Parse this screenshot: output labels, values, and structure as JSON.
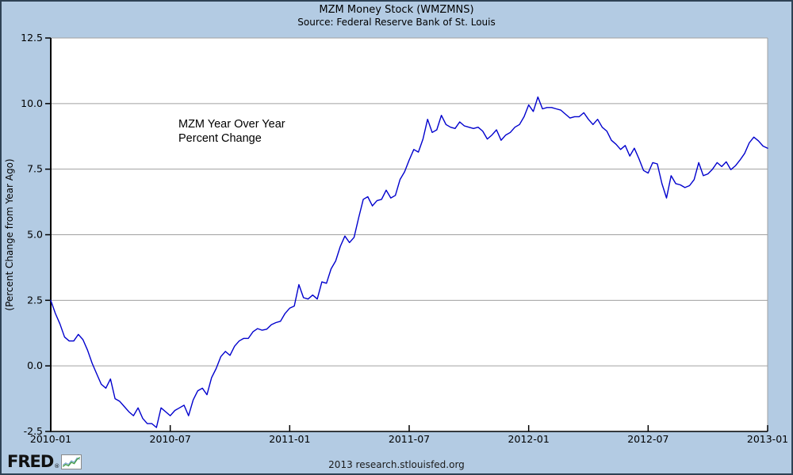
{
  "header": {
    "title": "MZM Money Stock (WMZMNS)",
    "source": "Source: Federal Reserve Bank of St. Louis"
  },
  "annotation": {
    "line1": "MZM Year Over Year",
    "line2": "Percent Change"
  },
  "footer": {
    "logo_text": "FRED",
    "registered_mark": "®",
    "logo_chart_icon": "mini-line-chart-icon",
    "credit": "2013 research.stlouisfed.org"
  },
  "colors": {
    "background": "#b3cbe3",
    "plot_background": "#ffffff",
    "gridline": "#a0a0a0",
    "axis": "#000000",
    "line": "#0000cd",
    "frame_border": "#2e4154",
    "logo_icon_green": "#3f9b3f",
    "logo_icon_blue": "#7aa4cc"
  },
  "chart_data": {
    "type": "line",
    "title": "MZM Money Stock (WMZMNS)",
    "subtitle": "Source: Federal Reserve Bank of St. Louis",
    "xlabel": "",
    "ylabel": "(Percent Change from Year Ago)",
    "ylim": [
      -2.5,
      12.5
    ],
    "y_ticks": [
      "12.5",
      "10.0",
      "7.5",
      "5.0",
      "2.5",
      "0.0",
      "-2.5"
    ],
    "x_tick_labels": [
      "2010-01",
      "2010-07",
      "2011-01",
      "2011-07",
      "2012-01",
      "2012-07",
      "2013-01"
    ],
    "grid": "horizontal",
    "legend_position": "none",
    "annotation_text": "MZM Year Over Year Percent Change",
    "series": [
      {
        "name": "MZM Money Stock, Percent Change from Year Ago",
        "color": "#0000cd",
        "values": [
          2.5,
          2.0,
          1.6,
          1.1,
          0.95,
          0.95,
          1.2,
          1.0,
          0.6,
          0.1,
          -0.3,
          -0.7,
          -0.85,
          -0.5,
          -1.25,
          -1.35,
          -1.55,
          -1.75,
          -1.9,
          -1.6,
          -2.0,
          -2.2,
          -2.2,
          -2.35,
          -1.6,
          -1.75,
          -1.9,
          -1.7,
          -1.6,
          -1.5,
          -1.9,
          -1.3,
          -0.95,
          -0.85,
          -1.1,
          -0.45,
          -0.1,
          0.35,
          0.55,
          0.4,
          0.75,
          0.95,
          1.05,
          1.05,
          1.3,
          1.42,
          1.36,
          1.4,
          1.57,
          1.65,
          1.7,
          2.0,
          2.2,
          2.28,
          3.1,
          2.6,
          2.55,
          2.7,
          2.55,
          3.2,
          3.15,
          3.7,
          4.0,
          4.55,
          4.95,
          4.7,
          4.9,
          5.65,
          6.35,
          6.45,
          6.1,
          6.3,
          6.35,
          6.7,
          6.4,
          6.5,
          7.1,
          7.4,
          7.85,
          8.25,
          8.15,
          8.65,
          9.4,
          8.9,
          9.0,
          9.55,
          9.2,
          9.1,
          9.05,
          9.3,
          9.15,
          9.1,
          9.05,
          9.1,
          8.95,
          8.65,
          8.8,
          9.0,
          8.6,
          8.8,
          8.9,
          9.1,
          9.2,
          9.5,
          9.95,
          9.7,
          10.25,
          9.8,
          9.85,
          9.85,
          9.8,
          9.75,
          9.6,
          9.45,
          9.5,
          9.5,
          9.65,
          9.4,
          9.2,
          9.4,
          9.1,
          8.95,
          8.6,
          8.45,
          8.25,
          8.4,
          8.0,
          8.3,
          7.9,
          7.45,
          7.35,
          7.75,
          7.7,
          6.95,
          6.4,
          7.25,
          6.95,
          6.9,
          6.8,
          6.87,
          7.1,
          7.75,
          7.25,
          7.32,
          7.5,
          7.75,
          7.6,
          7.78,
          7.48,
          7.63,
          7.85,
          8.1,
          8.5,
          8.72,
          8.58,
          8.38,
          8.3
        ]
      }
    ]
  }
}
